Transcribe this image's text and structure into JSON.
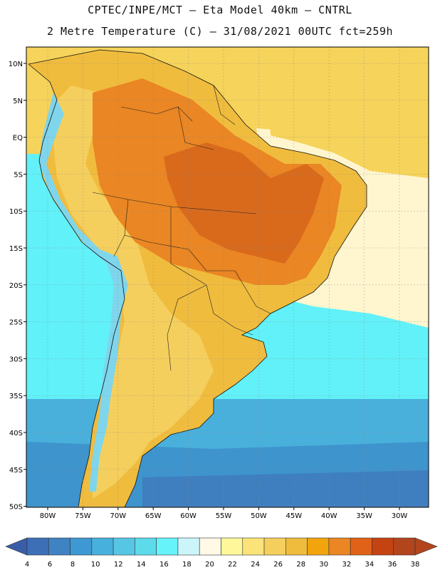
{
  "header": {
    "title_line1": "CPTEC/INPE/MCT –  Eta Model 40km – CNTRL",
    "title_line2": "2 Metre Temperature (C) – 31/08/2021 00UTC fct=259h"
  },
  "axes": {
    "lat_labels": [
      "10N",
      "5N",
      "EQ",
      "5S",
      "10S",
      "15S",
      "20S",
      "25S",
      "30S",
      "35S",
      "40S",
      "45S",
      "50S"
    ],
    "lon_labels": [
      "80W",
      "75W",
      "70W",
      "65W",
      "60W",
      "55W",
      "50W",
      "45W",
      "40W",
      "35W",
      "30W"
    ]
  },
  "colorbar": {
    "levels": [
      "4",
      "6",
      "8",
      "10",
      "12",
      "14",
      "16",
      "18",
      "20",
      "22",
      "24",
      "26",
      "28",
      "30",
      "32",
      "34",
      "36",
      "38"
    ],
    "colors": [
      "#3d6fb6",
      "#3f83c3",
      "#3e99d2",
      "#48b0dc",
      "#57c6e4",
      "#5ddbea",
      "#66f3f9",
      "#ccf5fb",
      "#fff9e6",
      "#fff799",
      "#fbe37a",
      "#f5cf5d",
      "#f0bc3e",
      "#f1a40c",
      "#ea8623",
      "#e06218",
      "#c54311",
      "#b3451d"
    ],
    "ends": {
      "low": "#3a5da8",
      "high": "#b3451d"
    }
  },
  "map_colors": {
    "ocean_warm": "#f6d35a",
    "ocean_mild": "#fff6cf",
    "ocean_cool": "#62f1f8",
    "ocean_cold": "#49b0dc",
    "ocean_colder": "#3e94cd",
    "ocean_coldest": "#3f7fbf",
    "land_hot": "#ea8623",
    "land_hotter": "#d96a1c",
    "land_warm": "#f0bc3e",
    "land_mild": "#f5cf5d",
    "andes_cool": "#7fd6ec"
  }
}
